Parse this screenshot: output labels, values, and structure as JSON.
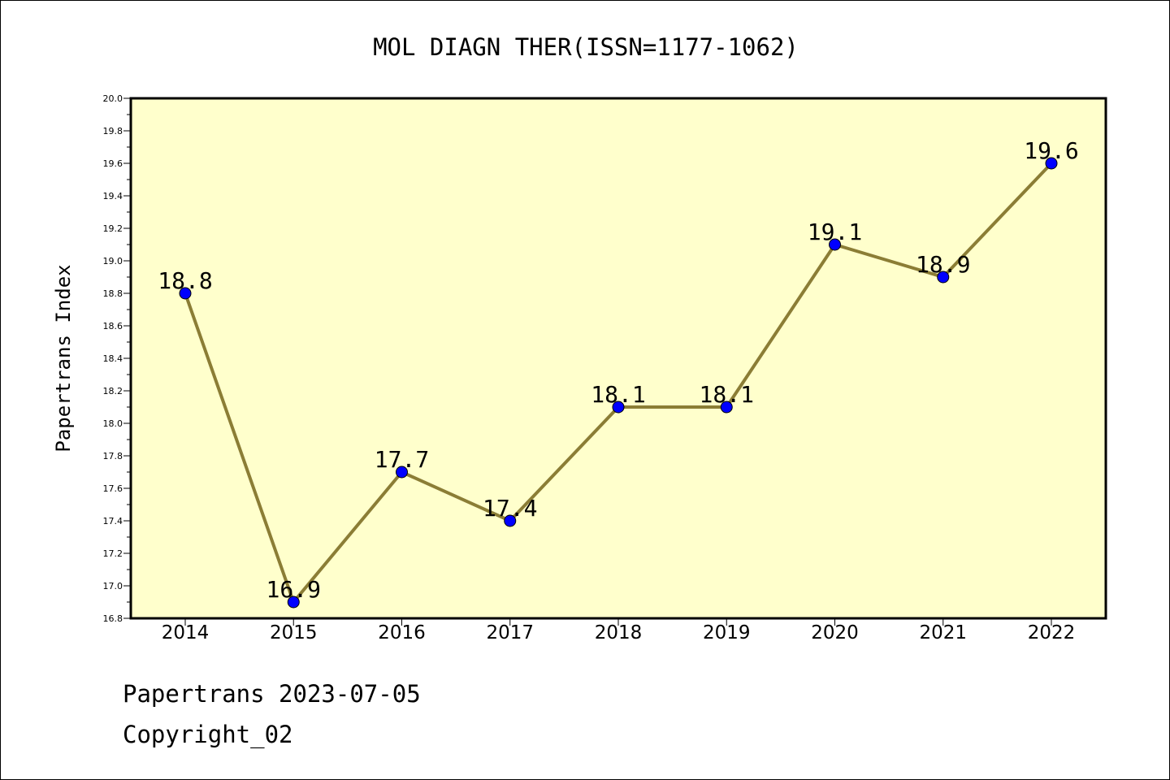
{
  "chart_data": {
    "type": "line",
    "title": "MOL DIAGN THER(ISSN=1177-1062)",
    "xlabel": "",
    "ylabel": "Papertrans Index",
    "categories": [
      "2014",
      "2015",
      "2016",
      "2017",
      "2018",
      "2019",
      "2020",
      "2021",
      "2022"
    ],
    "series": [
      {
        "values": [
          18.8,
          16.9,
          17.7,
          17.4,
          18.1,
          18.1,
          19.1,
          18.9,
          19.6
        ],
        "data_labels": [
          "18.8",
          "16.9",
          "17.7",
          "17.4",
          "18.1",
          "18.1",
          "19.1",
          "18.9",
          "19.6"
        ]
      }
    ],
    "ylim": [
      16.8,
      20.0
    ],
    "yticks": [
      "16.8",
      "17.0",
      "17.2",
      "17.4",
      "17.6",
      "17.8",
      "18.0",
      "18.2",
      "18.4",
      "18.6",
      "18.8",
      "19.0",
      "19.2",
      "19.4",
      "19.6",
      "19.8",
      "20.0"
    ],
    "grid": false,
    "colors": {
      "plot_background": "#ffffcc",
      "line": "#8b7d35",
      "marker": "#0000ff"
    }
  },
  "footer": {
    "date_line": "Papertrans 2023-07-05",
    "copyright_line": "Copyright_02"
  }
}
